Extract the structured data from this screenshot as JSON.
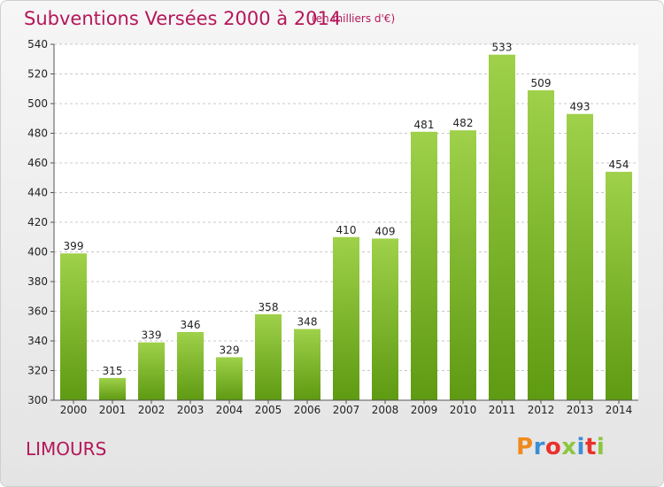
{
  "header": {
    "title": "Subventions Versées 2000 à 2014",
    "subtitle": "(en milliers d'€)"
  },
  "footer": {
    "place": "LIMOURS",
    "logo_text": "Proxiti",
    "logo_colors": [
      "#f08a1c",
      "#3a8fd6",
      "#e8322b",
      "#8cc63f",
      "#3a8fd6",
      "#e8322b",
      "#8cc63f"
    ]
  },
  "chart_data": {
    "type": "bar",
    "categories": [
      "2000",
      "2001",
      "2002",
      "2003",
      "2004",
      "2005",
      "2006",
      "2007",
      "2008",
      "2009",
      "2010",
      "2011",
      "2012",
      "2013",
      "2014"
    ],
    "values": [
      399,
      315,
      339,
      346,
      329,
      358,
      348,
      410,
      409,
      481,
      482,
      533,
      509,
      493,
      454
    ],
    "ylim": [
      300,
      540
    ],
    "yticks": [
      300,
      320,
      340,
      360,
      380,
      400,
      420,
      440,
      460,
      480,
      500,
      520,
      540
    ],
    "grid": true,
    "bar_color_top": "#9fd14a",
    "bar_color_bottom": "#5e9a12",
    "title": "Subventions Versées 2000 à 2014",
    "xlabel": "",
    "ylabel": ""
  }
}
